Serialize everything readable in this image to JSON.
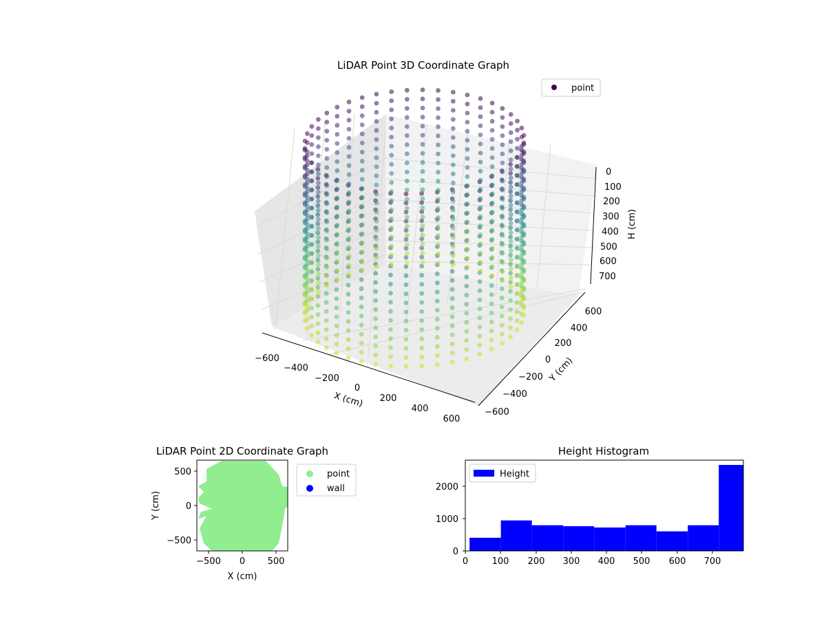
{
  "colors": {
    "background": "#ffffff",
    "point_3d_legend": "#440154",
    "point_2d": "#90ee90",
    "wall": "#0000ff",
    "histogram_bar": "#0000ff",
    "pane_back": "#f2f2f2",
    "pane_side": "#e6e6e6",
    "grid": "#d9d9d9"
  },
  "chart_data": [
    {
      "type": "scatter",
      "projection": "3d",
      "title": "LiDAR Point 3D Coordinate Graph",
      "xlabel": "X (cm)",
      "ylabel": "Y (cm)",
      "zlabel": "H (cm)",
      "x_ticks": [
        "−600",
        "−400",
        "−200",
        "0",
        "200",
        "400",
        "600"
      ],
      "y_ticks": [
        "−600",
        "−400",
        "−200",
        "0",
        "200",
        "400",
        "600"
      ],
      "z_ticks": [
        "0",
        "100",
        "200",
        "300",
        "400",
        "500",
        "600",
        "700"
      ],
      "xlim": [
        -700,
        700
      ],
      "ylim": [
        -700,
        700
      ],
      "zlim": [
        780,
        0
      ],
      "z_inverted": true,
      "colormap": "viridis",
      "legend": {
        "entries": [
          {
            "label": "point",
            "color": "#440154"
          }
        ],
        "placement": "upper right"
      },
      "grid": true,
      "wall_radius_cm": 600,
      "wall_height_cm": 780
    },
    {
      "type": "scatter",
      "title": "LiDAR Point 2D Coordinate Graph",
      "xlabel": "X (cm)",
      "ylabel": "Y (cm)",
      "x_ticks": [
        "−500",
        "0",
        "500"
      ],
      "y_ticks": [
        "−500",
        "0",
        "500"
      ],
      "xlim": [
        -670,
        670
      ],
      "ylim": [
        -670,
        670
      ],
      "legend": {
        "entries": [
          {
            "label": "point",
            "color": "#90ee90"
          },
          {
            "label": "wall",
            "color": "#0000ff"
          }
        ],
        "placement": "outside right"
      },
      "series": [
        {
          "name": "point",
          "color": "#90ee90",
          "shape": "filled disc",
          "radius_cm": 650
        },
        {
          "name": "wall",
          "color": "#0000ff",
          "values": []
        }
      ]
    },
    {
      "type": "bar",
      "title": "Height Histogram",
      "x_ticks": [
        "0",
        "100",
        "200",
        "300",
        "400",
        "500",
        "600",
        "700"
      ],
      "y_ticks": [
        "0",
        "1000",
        "2000"
      ],
      "xlim": [
        0,
        790
      ],
      "ylim": [
        0,
        2830
      ],
      "legend": {
        "entries": [
          {
            "label": "Height",
            "color": "#0000ff"
          }
        ],
        "placement": "upper left"
      },
      "series": [
        {
          "name": "Height",
          "bins": [
            {
              "x0": 12,
              "x1": 101,
              "count": 410
            },
            {
              "x0": 101,
              "x1": 189,
              "count": 950
            },
            {
              "x0": 189,
              "x1": 278,
              "count": 800
            },
            {
              "x0": 278,
              "x1": 366,
              "count": 770
            },
            {
              "x0": 366,
              "x1": 455,
              "count": 730
            },
            {
              "x0": 455,
              "x1": 543,
              "count": 800
            },
            {
              "x0": 543,
              "x1": 632,
              "count": 610
            },
            {
              "x0": 632,
              "x1": 720,
              "count": 800
            },
            {
              "x0": 720,
              "x1": 790,
              "count": 2680
            }
          ]
        }
      ]
    }
  ]
}
